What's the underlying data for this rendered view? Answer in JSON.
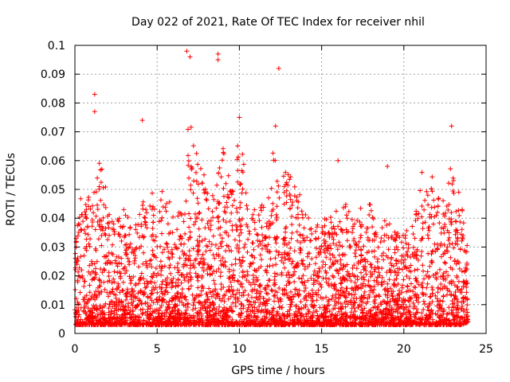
{
  "chart_data": {
    "type": "scatter",
    "title": "Day 022 of 2021, Rate Of TEC Index for receiver nhil",
    "xlabel": "GPS time / hours",
    "ylabel": "ROTI / TECUs",
    "xlim": [
      0,
      25
    ],
    "ylim": [
      0,
      0.1
    ],
    "x_ticks": [
      0,
      5,
      10,
      15,
      20,
      25
    ],
    "x_tick_labels": [
      "0",
      "5",
      "10",
      "15",
      "20",
      "25"
    ],
    "y_ticks": [
      0,
      0.01,
      0.02,
      0.03,
      0.04,
      0.05,
      0.06,
      0.07,
      0.08,
      0.09,
      0.1
    ],
    "y_tick_labels": [
      "0",
      "0.01",
      "0.02",
      "0.03",
      "0.04",
      "0.05",
      "0.06",
      "0.07",
      "0.08",
      "0.09",
      "0.1"
    ],
    "grid": true,
    "marker": "+",
    "color": "#ff0000",
    "x_data_range": [
      0,
      23.9
    ],
    "notable_points": [
      {
        "x": 1.2,
        "y": 0.083
      },
      {
        "x": 1.2,
        "y": 0.077
      },
      {
        "x": 4.1,
        "y": 0.074
      },
      {
        "x": 6.8,
        "y": 0.098
      },
      {
        "x": 7.0,
        "y": 0.096
      },
      {
        "x": 8.7,
        "y": 0.097
      },
      {
        "x": 8.7,
        "y": 0.095
      },
      {
        "x": 12.4,
        "y": 0.092
      },
      {
        "x": 10.0,
        "y": 0.075
      },
      {
        "x": 12.2,
        "y": 0.072
      },
      {
        "x": 22.9,
        "y": 0.072
      },
      {
        "x": 16.0,
        "y": 0.06
      },
      {
        "x": 19.0,
        "y": 0.058
      }
    ],
    "envelope": {
      "x": [
        0,
        0.5,
        1,
        1.5,
        2,
        2.5,
        3,
        3.5,
        4,
        4.5,
        5,
        5.5,
        6,
        6.5,
        7,
        7.5,
        8,
        8.5,
        9,
        9.5,
        10,
        10.5,
        11,
        11.5,
        12,
        12.5,
        13,
        13.5,
        14,
        14.5,
        15,
        15.5,
        16,
        16.5,
        17,
        17.5,
        18,
        18.5,
        19,
        19.5,
        20,
        20.5,
        21,
        21.5,
        22,
        22.5,
        23,
        23.5,
        23.9
      ],
      "upper": [
        0.03,
        0.055,
        0.045,
        0.06,
        0.05,
        0.04,
        0.045,
        0.035,
        0.045,
        0.05,
        0.048,
        0.055,
        0.04,
        0.045,
        0.085,
        0.06,
        0.055,
        0.048,
        0.065,
        0.05,
        0.07,
        0.05,
        0.045,
        0.045,
        0.065,
        0.055,
        0.06,
        0.05,
        0.045,
        0.04,
        0.04,
        0.04,
        0.045,
        0.045,
        0.04,
        0.045,
        0.045,
        0.04,
        0.04,
        0.035,
        0.035,
        0.04,
        0.055,
        0.06,
        0.05,
        0.045,
        0.065,
        0.045,
        0.03
      ],
      "lower": [
        0.003,
        0.003,
        0.003,
        0.003,
        0.003,
        0.003,
        0.003,
        0.003,
        0.003,
        0.003,
        0.003,
        0.003,
        0.003,
        0.003,
        0.003,
        0.003,
        0.003,
        0.003,
        0.003,
        0.003,
        0.003,
        0.003,
        0.003,
        0.003,
        0.003,
        0.003,
        0.003,
        0.003,
        0.003,
        0.003,
        0.003,
        0.003,
        0.003,
        0.003,
        0.003,
        0.003,
        0.003,
        0.003,
        0.003,
        0.003,
        0.003,
        0.003,
        0.003,
        0.003,
        0.003,
        0.003,
        0.003,
        0.003,
        0.004
      ]
    }
  }
}
